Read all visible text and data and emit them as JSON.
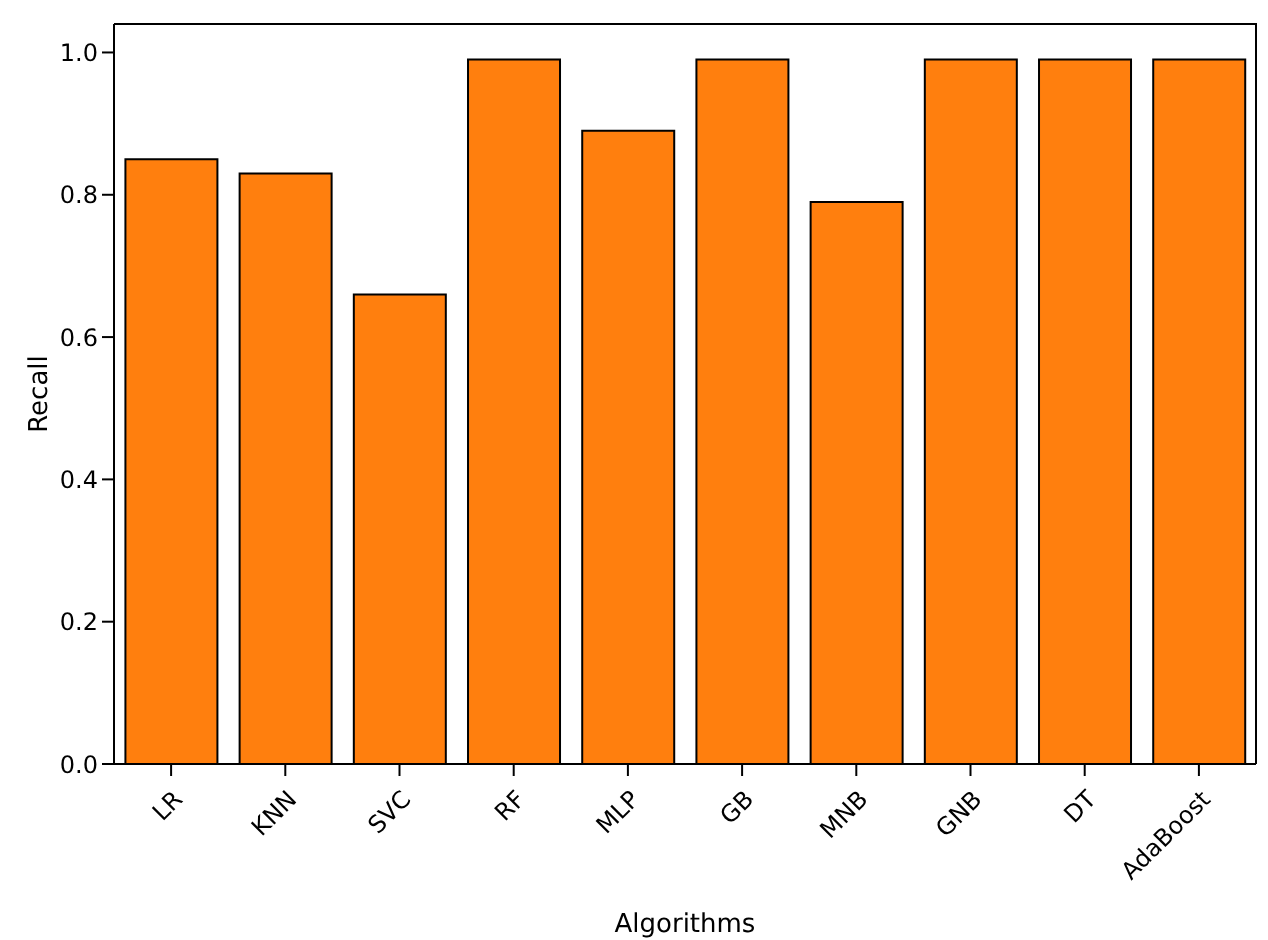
{
  "chart_data": {
    "type": "bar",
    "xlabel": "Algorithms",
    "ylabel": "Recall",
    "categories": [
      "LR",
      "KNN",
      "SVC",
      "RF",
      "MLP",
      "GB",
      "MNB",
      "GNB",
      "DT",
      "AdaBoost"
    ],
    "values": [
      0.85,
      0.83,
      0.66,
      0.99,
      0.89,
      0.99,
      0.79,
      0.99,
      0.99,
      0.99
    ],
    "color": "#ff7f0e",
    "ylim": [
      0,
      1.04
    ],
    "yticks": [
      {
        "value": 0,
        "label": "0.0"
      },
      0.2,
      0.4,
      0.6,
      0.8,
      {
        "value": 1,
        "label": "1.0"
      }
    ],
    "grid": false
  }
}
